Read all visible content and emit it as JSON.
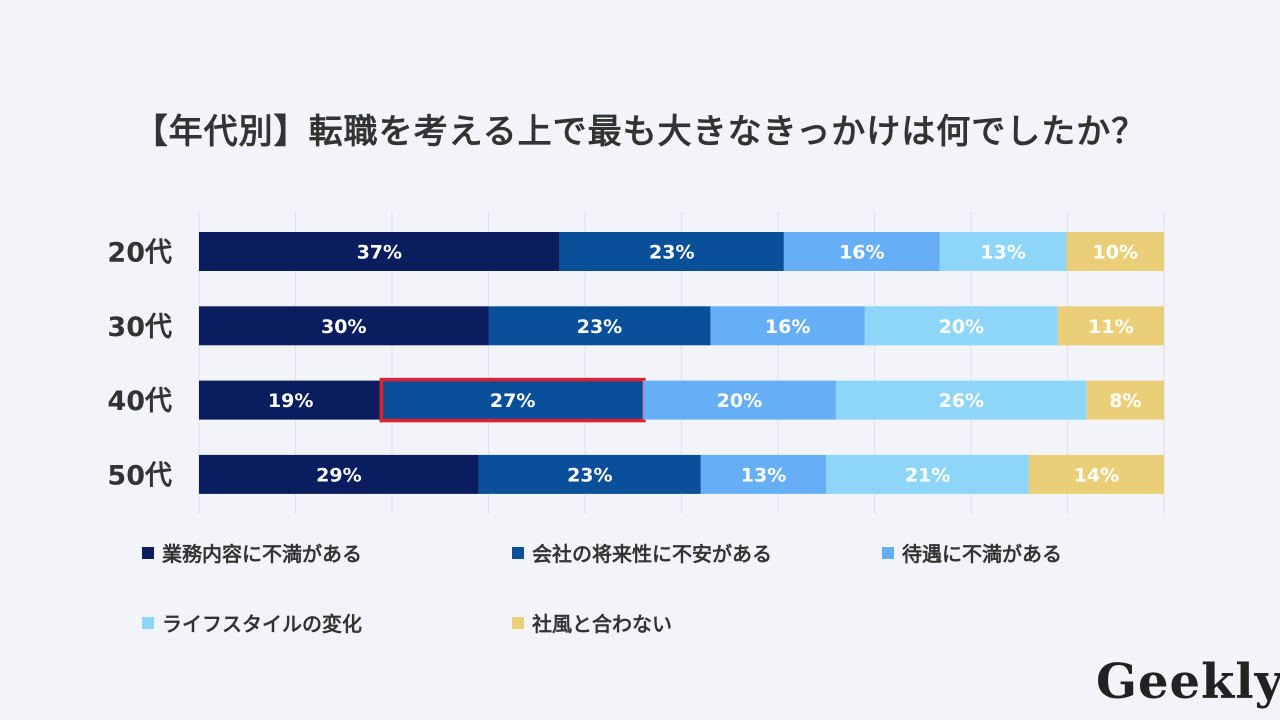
{
  "chart_data": {
    "type": "bar",
    "orientation": "horizontal",
    "stacked": true,
    "title": "【年代別】転職を考える上で最も大きなきっかけは何でしたか？",
    "categories": [
      "20代",
      "30代",
      "40代",
      "50代"
    ],
    "series": [
      {
        "name": "業務内容に不満がある",
        "color": "#0a1d5e",
        "values": [
          37,
          30,
          19,
          29
        ]
      },
      {
        "name": "会社の将来性に不安がある",
        "color": "#0a4f9a",
        "values": [
          23,
          23,
          27,
          23
        ]
      },
      {
        "name": "待遇に不満がある",
        "color": "#66aef5",
        "values": [
          16,
          16,
          20,
          13
        ]
      },
      {
        "name": "ライフスタイルの変化",
        "color": "#8ed5fa",
        "values": [
          13,
          20,
          26,
          21
        ]
      },
      {
        "name": "社風と合わない",
        "color": "#ebcf78",
        "values": [
          10,
          11,
          8,
          14
        ]
      }
    ],
    "value_suffix": "%",
    "highlight": {
      "category": "40代",
      "series": "会社の将来性に不安がある",
      "color": "#e0202b"
    }
  },
  "brand": {
    "logo_text": "Geekly"
  }
}
